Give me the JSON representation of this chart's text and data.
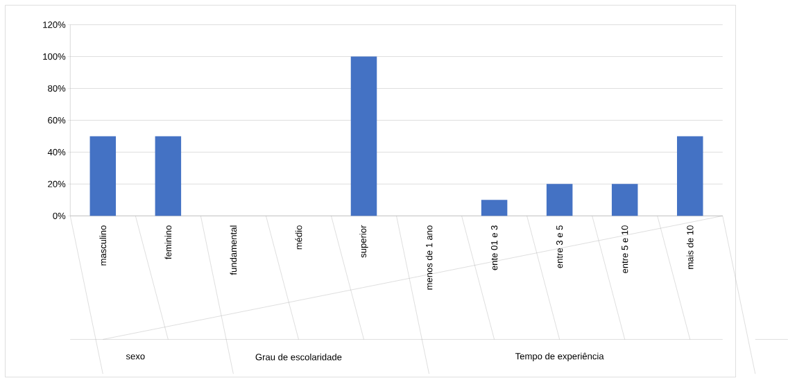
{
  "chart_data": {
    "type": "bar",
    "categories": [
      "masculino",
      "feminino",
      "fundamental",
      "médio",
      "superior",
      "menos de 1 ano",
      "ente 01 e 3",
      "entre 3 e 5",
      "entre 5 e 10",
      "mais de 10"
    ],
    "values": [
      50,
      50,
      0,
      0,
      100,
      0,
      10,
      20,
      20,
      50
    ],
    "color": "#4472c4",
    "ylim": [
      0,
      120
    ],
    "yticks": [
      {
        "value": 0,
        "label": "0%"
      },
      {
        "value": 20,
        "label": "20%"
      },
      {
        "value": 40,
        "label": "40%"
      },
      {
        "value": 60,
        "label": "60%"
      },
      {
        "value": 80,
        "label": "80%"
      },
      {
        "value": 100,
        "label": "100%"
      },
      {
        "value": 120,
        "label": "120%"
      }
    ],
    "grid": "y",
    "annotations": [
      "sexo",
      "Grau de escolaridade",
      "Tempo de experiência"
    ]
  }
}
